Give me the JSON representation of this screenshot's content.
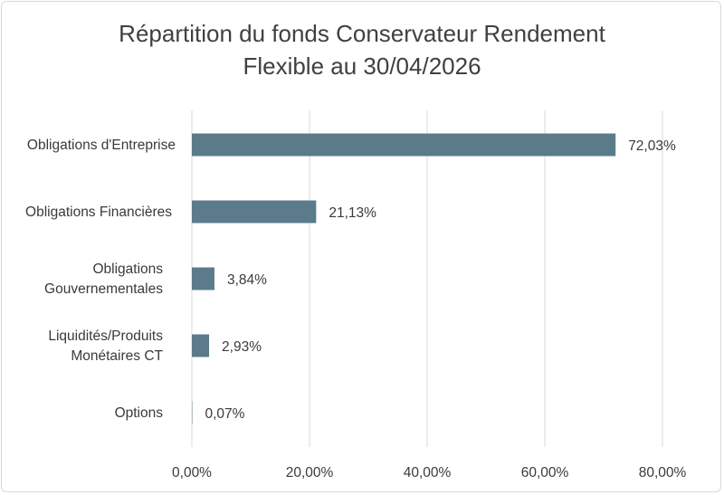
{
  "chart_data": {
    "type": "bar",
    "orientation": "horizontal",
    "title_lines": [
      "Répartition du fonds Conservateur Rendement",
      "Flexible au 30/04/2026"
    ],
    "categories": [
      [
        "Obligations d'Entreprise"
      ],
      [
        "Obligations Financières"
      ],
      [
        "Obligations",
        "Gouvernementales"
      ],
      [
        "Liquidités/Produits",
        "Monétaires CT"
      ],
      [
        "Options"
      ]
    ],
    "values": [
      72.03,
      21.13,
      3.84,
      2.93,
      0.07
    ],
    "value_labels": [
      "72,03%",
      "21,13%",
      "3,84%",
      "2,93%",
      "0,07%"
    ],
    "xlim": [
      0,
      80
    ],
    "ticks": [
      0,
      20,
      40,
      60,
      80
    ],
    "tick_labels": [
      "0,00%",
      "20,00%",
      "40,00%",
      "60,00%",
      "80,00%"
    ],
    "grid": true,
    "legend": "none",
    "bar_color": "#5b7b8a"
  }
}
